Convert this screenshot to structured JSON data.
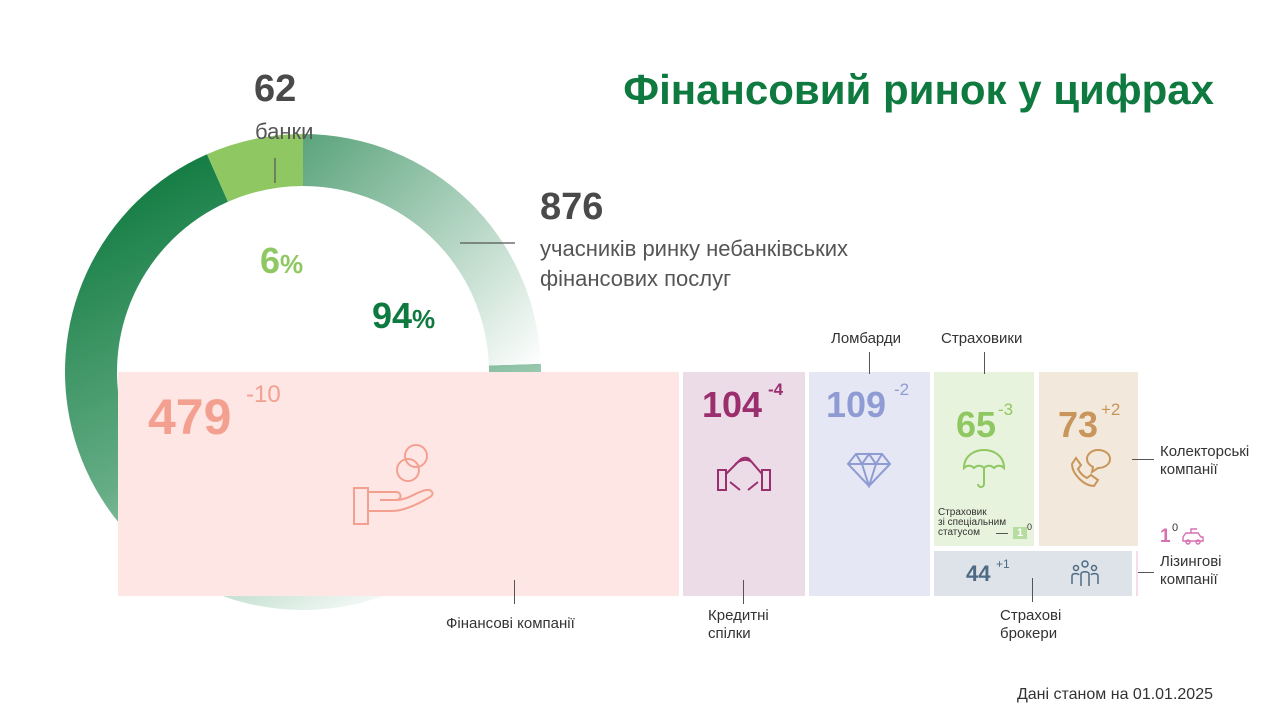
{
  "title": "Фінансовий ринок у цифрах",
  "date_note": "Дані станом на 01.01.2025",
  "colors": {
    "title": "#0f7a3f",
    "dark_green": "#0f7a3f",
    "light_green": "#8fc862",
    "finance": "#f4a090",
    "credit": "#9b2f6e",
    "lombard": "#8f9cd4",
    "insurer": "#8fc862",
    "collector": "#c8955a",
    "broker": "#4e6a84",
    "leasing": "#d86fb0"
  },
  "chart_data": [
    {
      "type": "pie",
      "categories": [
        "банки",
        "учасників ринку небанківських фінансових послуг"
      ],
      "values": [
        62,
        876
      ],
      "percent_labels": [
        "6",
        "94"
      ],
      "percent_sign": "%",
      "labels": {
        "banks_count": "62",
        "banks_label": "банки",
        "nonbank_count": "876",
        "nonbank_label_line1": "учасників ринку небанківських",
        "nonbank_label_line2": "фінансових послуг"
      }
    },
    {
      "type": "table",
      "categories": [
        {
          "key": "finance",
          "label": "Фінансові компанії",
          "value": "479",
          "change": "-10"
        },
        {
          "key": "credit",
          "label_line1": "Кредитні",
          "label_line2": "спілки",
          "value": "104",
          "change": "-4"
        },
        {
          "key": "lombard",
          "label": "Ломбарди",
          "value": "109",
          "change": "-2"
        },
        {
          "key": "insurer",
          "label": "Страховики",
          "value": "65",
          "change": "-3"
        },
        {
          "key": "collector",
          "label_line1": "Колекторські",
          "label_line2": "компанії",
          "value": "73",
          "change": "+2"
        },
        {
          "key": "broker",
          "label_line1": "Страхові",
          "label_line2": "брокери",
          "value": "44",
          "change": "+1"
        },
        {
          "key": "leasing",
          "label_line1": "Лізингові",
          "label_line2": "компанії",
          "value": "1",
          "change": "0"
        },
        {
          "key": "special_insurer",
          "label_line1": "Страховик",
          "label_line2": "зі спеціальним",
          "label_line3": "статусом",
          "value": "1",
          "change": "0"
        }
      ]
    }
  ]
}
